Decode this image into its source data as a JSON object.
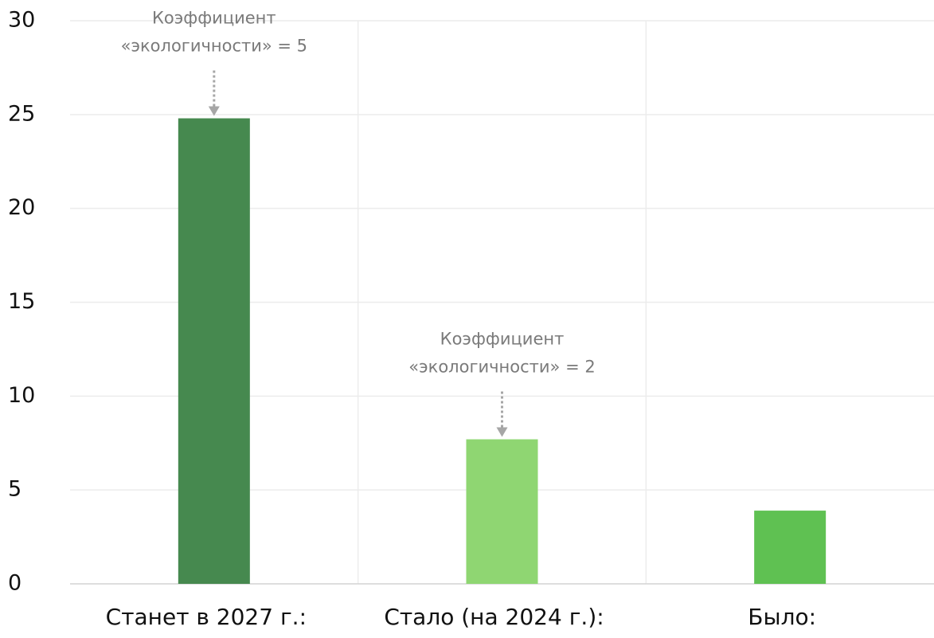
{
  "chart_data": {
    "type": "bar",
    "categories": [
      "Станет в 2027 г.:",
      "Стало (на 2024 г.):",
      "Было:"
    ],
    "values": [
      24.8,
      7.7,
      3.9
    ],
    "colors": [
      "#46894f",
      "#8fd672",
      "#5fc152"
    ],
    "ylim": [
      0,
      30
    ],
    "yticks": [
      0,
      5,
      10,
      15,
      20,
      25,
      30
    ],
    "grid": true,
    "annotations": [
      {
        "lines": [
          "Коэффициент",
          "«экологичности» = 5"
        ]
      },
      {
        "lines": [
          "Коэффициент",
          "«экологичности» = 2"
        ]
      }
    ]
  }
}
